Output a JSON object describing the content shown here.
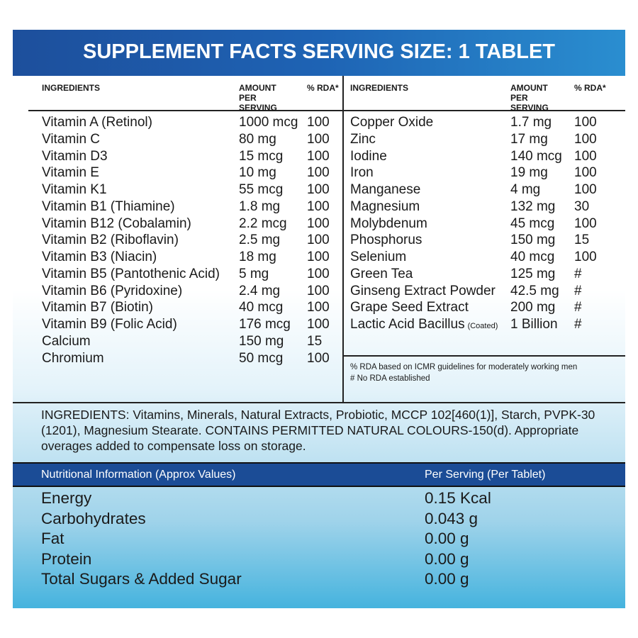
{
  "header": {
    "title": "SUPPLEMENT FACTS SERVING SIZE: 1 TABLET"
  },
  "table": {
    "columns": [
      "INGREDIENTS",
      "AMOUNT PER SERVING",
      "% RDA*"
    ],
    "left_rows": [
      [
        "Vitamin A (Retinol)",
        "1000 mcg",
        "100"
      ],
      [
        "Vitamin C",
        "80 mg",
        "100"
      ],
      [
        "Vitamin D3",
        "15 mcg",
        "100"
      ],
      [
        "Vitamin E",
        "10 mg",
        "100"
      ],
      [
        "Vitamin K1",
        "55 mcg",
        "100"
      ],
      [
        "Vitamin B1 (Thiamine)",
        "1.8 mg",
        "100"
      ],
      [
        "Vitamin B12 (Cobalamin)",
        "2.2 mcg",
        "100"
      ],
      [
        "Vitamin B2 (Riboflavin)",
        "2.5 mg",
        "100"
      ],
      [
        "Vitamin B3 (Niacin)",
        "18 mg",
        "100"
      ],
      [
        "Vitamin B5 (Pantothenic Acid)",
        "5 mg",
        "100"
      ],
      [
        "Vitamin B6 (Pyridoxine)",
        "2.4 mg",
        "100"
      ],
      [
        "Vitamin B7 (Biotin)",
        "40 mcg",
        "100"
      ],
      [
        "Vitamin B9 (Folic Acid)",
        "176 mcg",
        "100"
      ],
      [
        "Calcium",
        "150 mg",
        "15"
      ],
      [
        "Chromium",
        "50 mcg",
        "100"
      ]
    ],
    "right_rows": [
      [
        "Copper Oxide",
        "1.7 mg",
        "100"
      ],
      [
        "Zinc",
        "17 mg",
        "100"
      ],
      [
        "Iodine",
        "140 mcg",
        "100"
      ],
      [
        "Iron",
        "19 mg",
        "100"
      ],
      [
        "Manganese",
        "4 mg",
        "100"
      ],
      [
        "Magnesium",
        "132 mg",
        "30"
      ],
      [
        "Molybdenum",
        "45 mcg",
        "100"
      ],
      [
        "Phosphorus",
        "150 mg",
        "15"
      ],
      [
        "Selenium",
        "40 mcg",
        "100"
      ],
      [
        "Green Tea",
        "125 mg",
        "#"
      ],
      [
        "Ginseng Extract Powder",
        "42.5 mg",
        "#"
      ],
      [
        "Grape Seed Extract",
        "200 mg",
        "#"
      ],
      [
        {
          "text": "Lactic Acid Bacillus",
          "note": "(Coated)"
        },
        "1 Billion",
        "#"
      ]
    ],
    "notes": [
      "% RDA based on ICMR guidelines for moderately working men",
      "# No RDA established"
    ]
  },
  "ingredients_text": "INGREDIENTS: Vitamins, Minerals, Natural Extracts, Probiotic, MCCP 102[460(1)], Starch, PVPK-30 (1201), Magnesium Stearate. CONTAINS PERMITTED NATURAL COLOURS-150(d). Appropriate overages added to compensate loss on storage.",
  "nutrition": {
    "headers": [
      "Nutritional Information (Approx Values)",
      "Per Serving (Per Tablet)"
    ],
    "rows": [
      [
        "Energy",
        "0.15 Kcal"
      ],
      [
        "Carbohydrates",
        "0.043 g"
      ],
      [
        "Fat",
        "0.00 g"
      ],
      [
        "Protein",
        "0.00 g"
      ],
      [
        "Total Sugars & Added Sugar",
        "0.00 g"
      ]
    ]
  }
}
